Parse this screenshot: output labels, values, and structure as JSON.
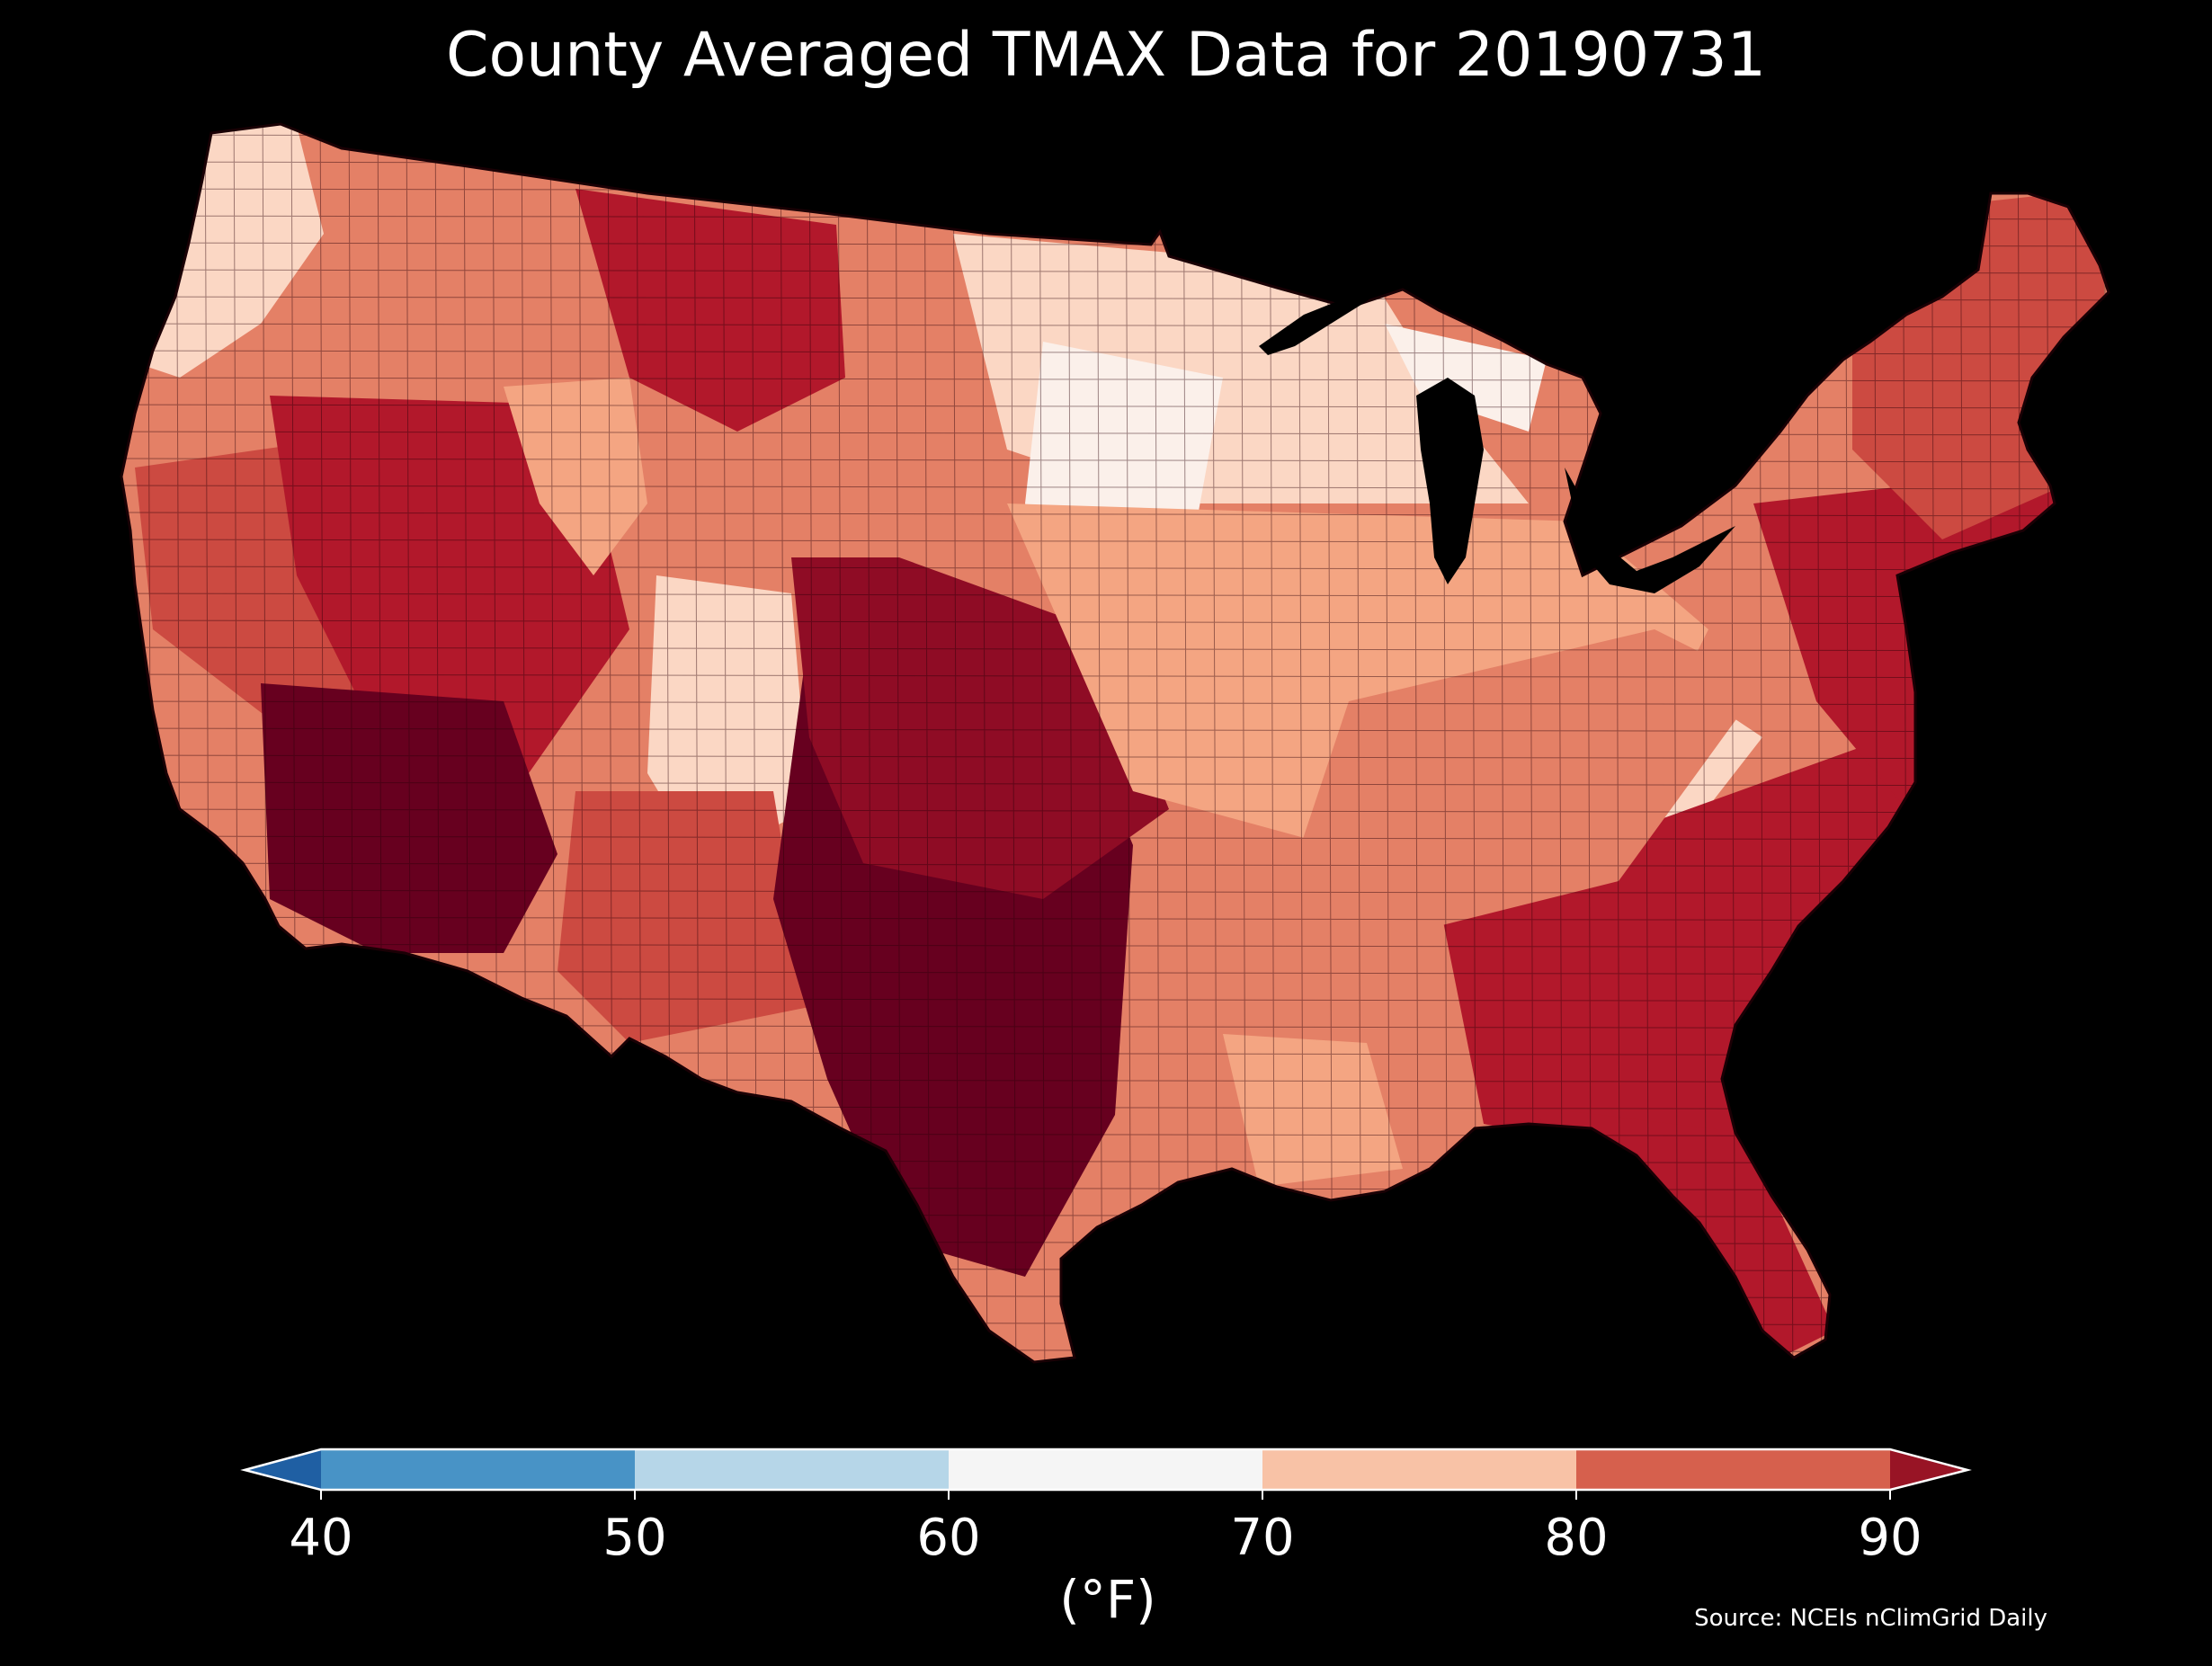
{
  "title": "County Averaged TMAX Data for 20190731",
  "colorbar": {
    "ticks": [
      "40",
      "50",
      "60",
      "70",
      "80",
      "90"
    ],
    "unit": "(°F)",
    "colors": {
      "below": "#1f5fa3",
      "b40_50": "#4893c6",
      "b50_60": "#b6d6e8",
      "b60_70": "#f5f5f5",
      "b70_80": "#f8c2a6",
      "b80_90": "#d6604d",
      "above": "#981425"
    }
  },
  "source": "Source: NCEIs nClimGrid Daily",
  "palette": {
    "hot": "#67001f",
    "veryhot": "#8f0c25",
    "warm": "#b2182b",
    "mid": "#cc4a41",
    "mild": "#e48066",
    "cool": "#f4a582",
    "pale": "#fbd7c4",
    "white": "#fbf0ea"
  }
}
